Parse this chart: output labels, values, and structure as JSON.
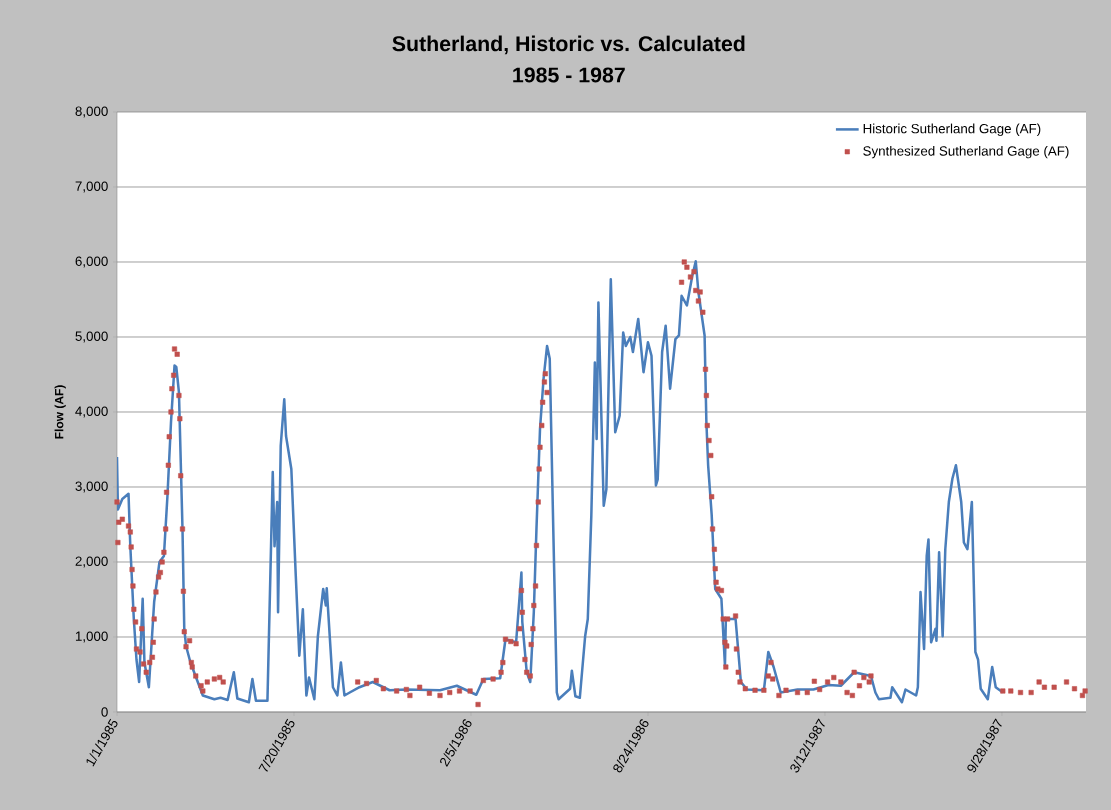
{
  "chart_data": {
    "type": "line",
    "title": "Sutherland, Historic vs. Calculated",
    "subtitle": "1985 - 1987",
    "ylabel": "Flow (AF)",
    "xlim": [
      "1985-01-01",
      "1988-01-01"
    ],
    "xticks": [
      {
        "value": "1985-01-01",
        "label": "1/1/1985"
      },
      {
        "value": "1985-07-20",
        "label": "7/20/1985"
      },
      {
        "value": "1986-02-05",
        "label": "2/5/1986"
      },
      {
        "value": "1986-08-24",
        "label": "8/24/1986"
      },
      {
        "value": "1987-03-12",
        "label": "3/12/1987"
      },
      {
        "value": "1987-09-28",
        "label": "9/28/1987"
      }
    ],
    "ylim": [
      0,
      8000
    ],
    "yticks": [
      {
        "value": 0,
        "label": "0"
      },
      {
        "value": 1000,
        "label": "1,000"
      },
      {
        "value": 2000,
        "label": "2,000"
      },
      {
        "value": 3000,
        "label": "3,000"
      },
      {
        "value": 4000,
        "label": "4,000"
      },
      {
        "value": 5000,
        "label": "5,000"
      },
      {
        "value": 6000,
        "label": "6,000"
      },
      {
        "value": 7000,
        "label": "7,000"
      },
      {
        "value": 8000,
        "label": "8,000"
      }
    ],
    "grid": "y",
    "legend": "top right",
    "series": [
      {
        "name": "Historic Sutherland Gage (AF)",
        "color": "#4a7ebb",
        "marker": "none",
        "x": [
          "1985-01-01",
          "1985-01-02",
          "1985-01-07",
          "1985-01-14",
          "1985-01-16",
          "1985-01-20",
          "1985-01-23",
          "1985-01-26",
          "1985-01-30",
          "1985-02-01",
          "1985-02-06",
          "1985-02-12",
          "1985-02-18",
          "1985-02-23",
          "1985-02-27",
          "1985-03-03",
          "1985-03-07",
          "1985-03-09",
          "1985-03-12",
          "1985-03-16",
          "1985-03-18",
          "1985-03-20",
          "1985-03-25",
          "1985-04-08",
          "1985-04-21",
          "1985-04-28",
          "1985-05-06",
          "1985-05-13",
          "1985-05-17",
          "1985-05-30",
          "1985-06-03",
          "1985-06-07",
          "1985-06-20",
          "1985-06-26",
          "1985-06-28",
          "1985-07-01",
          "1985-07-02",
          "1985-07-05",
          "1985-07-09",
          "1985-07-11",
          "1985-07-17",
          "1985-07-22",
          "1985-07-26",
          "1985-07-30",
          "1985-08-03",
          "1985-08-06",
          "1985-08-12",
          "1985-08-16",
          "1985-08-22",
          "1985-08-25",
          "1985-08-26",
          "1985-09-02",
          "1985-09-07",
          "1985-09-11",
          "1985-09-15",
          "1985-09-21",
          "1985-10-02",
          "1985-10-17",
          "1985-11-05",
          "1985-11-24",
          "1986-01-01",
          "1986-01-20",
          "1986-02-11",
          "1986-02-19",
          "1986-03-10",
          "1986-03-16",
          "1986-03-28",
          "1986-04-03",
          "1986-04-04",
          "1986-04-09",
          "1986-04-13",
          "1986-04-17",
          "1986-04-20",
          "1986-04-24",
          "1986-04-28",
          "1986-05-02",
          "1986-05-05",
          "1986-05-09",
          "1986-05-13",
          "1986-05-15",
          "1986-05-28",
          "1986-05-30",
          "1986-06-03",
          "1986-06-08",
          "1986-06-14",
          "1986-06-17",
          "1986-06-21",
          "1986-06-25",
          "1986-06-27",
          "1986-06-29",
          "1986-07-05",
          "1986-07-08",
          "1986-07-13",
          "1986-07-18",
          "1986-07-23",
          "1986-07-27",
          "1986-07-30",
          "1986-08-04",
          "1986-08-07",
          "1986-08-13",
          "1986-08-19",
          "1986-08-24",
          "1986-08-28",
          "1986-09-02",
          "1986-09-04",
          "1986-09-09",
          "1986-09-13",
          "1986-09-18",
          "1986-09-24",
          "1986-09-28",
          "1986-10-01",
          "1986-10-07",
          "1986-10-13",
          "1986-10-17",
          "1986-10-20",
          "1986-10-27",
          "1986-10-29",
          "1986-10-31",
          "1986-11-04",
          "1986-11-08",
          "1986-11-15",
          "1986-11-19",
          "1986-11-20",
          "1986-12-01",
          "1986-12-07",
          "1986-12-14",
          "1987-01-02",
          "1987-01-07",
          "1987-01-13",
          "1987-01-21",
          "1987-02-09",
          "1987-02-27",
          "1987-03-16",
          "1987-03-30",
          "1987-04-14",
          "1987-05-03",
          "1987-05-08",
          "1987-05-12",
          "1987-05-25",
          "1987-05-27",
          "1987-06-07",
          "1987-06-11",
          "1987-06-23",
          "1987-06-25",
          "1987-06-28",
          "1987-07-02",
          "1987-07-05",
          "1987-07-07",
          "1987-07-10",
          "1987-07-15",
          "1987-07-16",
          "1987-07-19",
          "1987-07-23",
          "1987-07-26",
          "1987-07-30",
          "1987-08-03",
          "1987-08-07",
          "1987-08-13",
          "1987-08-16",
          "1987-08-20",
          "1987-08-25",
          "1987-08-29",
          "1987-09-01",
          "1987-09-04",
          "1987-09-12",
          "1987-09-17",
          "1987-09-21",
          "1987-09-29"
        ],
        "values": [
          3400,
          2700,
          2840,
          2910,
          2220,
          1240,
          700,
          400,
          1510,
          660,
          330,
          1470,
          2000,
          2080,
          2880,
          3860,
          4620,
          4600,
          4260,
          2440,
          1110,
          880,
          660,
          220,
          170,
          190,
          160,
          530,
          180,
          130,
          440,
          150,
          150,
          3200,
          2210,
          2800,
          1330,
          3550,
          4170,
          3680,
          3240,
          1820,
          750,
          1370,
          220,
          460,
          170,
          1010,
          1640,
          1420,
          1650,
          330,
          220,
          660,
          220,
          260,
          330,
          400,
          290,
          300,
          290,
          350,
          230,
          440,
          450,
          970,
          930,
          1860,
          1200,
          530,
          400,
          1330,
          2440,
          3770,
          4440,
          4880,
          4710,
          2440,
          260,
          170,
          310,
          550,
          210,
          190,
          1010,
          1240,
          2620,
          4660,
          3640,
          5460,
          2750,
          2970,
          5770,
          3730,
          3950,
          5060,
          4880,
          5000,
          4800,
          5240,
          4530,
          4930,
          4750,
          3020,
          3100,
          4800,
          5150,
          4310,
          4970,
          5020,
          5550,
          5420,
          5810,
          6010,
          5600,
          5020,
          3870,
          3290,
          2630,
          1640,
          1510,
          620,
          1240,
          1240,
          400,
          300,
          290,
          800,
          600,
          260,
          300,
          300,
          360,
          350,
          530,
          480,
          260,
          170,
          190,
          330,
          130,
          300,
          220,
          330,
          1600,
          840,
          2080,
          2300,
          930,
          1110,
          950,
          2130,
          1010,
          2170,
          2800,
          3110,
          3290,
          2800,
          2260,
          2170,
          2800,
          800,
          700,
          310,
          170,
          600,
          330,
          260
        ]
      },
      {
        "name": "Synthesized Sutherland Gage (AF)",
        "type": "scatter",
        "color": "#c0504d",
        "marker": "square",
        "x": [
          "1985-01-01",
          "1985-01-02",
          "1985-01-03",
          "1985-01-07",
          "1985-01-14",
          "1985-01-16",
          "1985-01-17",
          "1985-01-18",
          "1985-01-19",
          "1985-01-20",
          "1985-01-22",
          "1985-01-23",
          "1985-01-27",
          "1985-01-29",
          "1985-01-31",
          "1985-02-03",
          "1985-02-07",
          "1985-02-10",
          "1985-02-11",
          "1985-02-12",
          "1985-02-14",
          "1985-02-17",
          "1985-02-19",
          "1985-02-21",
          "1985-02-23",
          "1985-02-25",
          "1985-02-26",
          "1985-02-28",
          "1985-03-01",
          "1985-03-03",
          "1985-03-04",
          "1985-03-06",
          "1985-03-07",
          "1985-03-10",
          "1985-03-12",
          "1985-03-13",
          "1985-03-14",
          "1985-03-16",
          "1985-03-17",
          "1985-03-18",
          "1985-03-20",
          "1985-03-24",
          "1985-03-26",
          "1985-03-27",
          "1985-03-31",
          "1985-04-06",
          "1985-04-08",
          "1985-04-13",
          "1985-04-21",
          "1985-04-27",
          "1985-05-01",
          "1985-09-30",
          "1985-10-10",
          "1985-10-21",
          "1985-10-29",
          "1985-11-13",
          "1985-11-24",
          "1985-11-28",
          "1985-12-09",
          "1985-12-20",
          "1986-01-01",
          "1986-01-12",
          "1986-01-23",
          "1986-02-04",
          "1986-02-13",
          "1986-02-19",
          "1986-03-02",
          "1986-03-11",
          "1986-03-13",
          "1986-03-16",
          "1986-03-22",
          "1986-03-28",
          "1986-04-01",
          "1986-04-03",
          "1986-04-04",
          "1986-04-07",
          "1986-04-09",
          "1986-04-13",
          "1986-04-14",
          "1986-04-16",
          "1986-04-17",
          "1986-04-19",
          "1986-04-20",
          "1986-04-22",
          "1986-04-23",
          "1986-04-24",
          "1986-04-26",
          "1986-04-27",
          "1986-04-29",
          "1986-04-30",
          "1986-05-02",
          "1986-10-01",
          "1986-10-04",
          "1986-10-07",
          "1986-10-11",
          "1986-10-15",
          "1986-10-17",
          "1986-10-20",
          "1986-10-22",
          "1986-10-25",
          "1986-10-28",
          "1986-10-29",
          "1986-10-30",
          "1986-11-01",
          "1986-11-03",
          "1986-11-04",
          "1986-11-05",
          "1986-11-07",
          "1986-11-08",
          "1986-11-09",
          "1986-11-11",
          "1986-11-15",
          "1986-11-17",
          "1986-11-19",
          "1986-11-20",
          "1986-11-21",
          "1986-11-22",
          "1986-12-01",
          "1986-12-02",
          "1986-12-04",
          "1986-12-06",
          "1986-12-12",
          "1986-12-23",
          "1987-01-02",
          "1987-01-07",
          "1987-01-10",
          "1987-01-12",
          "1987-01-19",
          "1987-01-27",
          "1987-02-09",
          "1987-02-20",
          "1987-02-28",
          "1987-03-06",
          "1987-03-15",
          "1987-03-22",
          "1987-03-30",
          "1987-04-06",
          "1987-04-12",
          "1987-04-14",
          "1987-04-20",
          "1987-04-25",
          "1987-05-01",
          "1987-05-03",
          "1987-09-29",
          "1987-10-08",
          "1987-10-19",
          "1987-10-31",
          "1987-11-09",
          "1987-11-15",
          "1987-11-26",
          "1987-12-10",
          "1987-12-19",
          "1987-12-28",
          "1987-12-31"
        ],
        "values": [
          2800,
          2260,
          2530,
          2570,
          2480,
          2400,
          2200,
          1900,
          1680,
          1370,
          1200,
          840,
          800,
          1110,
          640,
          530,
          660,
          730,
          930,
          1240,
          1600,
          1800,
          1860,
          2000,
          2130,
          2440,
          2930,
          3290,
          3670,
          4000,
          4310,
          4490,
          4840,
          4770,
          4220,
          3910,
          3150,
          2440,
          1610,
          1070,
          870,
          950,
          660,
          600,
          480,
          350,
          280,
          400,
          440,
          460,
          400,
          400,
          380,
          420,
          310,
          280,
          300,
          220,
          330,
          250,
          220,
          260,
          280,
          280,
          100,
          420,
          440,
          530,
          660,
          970,
          940,
          910,
          1110,
          1620,
          1330,
          700,
          530,
          480,
          900,
          1110,
          1420,
          1680,
          2220,
          2800,
          3240,
          3530,
          3820,
          4130,
          4400,
          4510,
          4260,
          5730,
          6000,
          5930,
          5800,
          5870,
          5620,
          5480,
          5600,
          5330,
          4570,
          4220,
          3820,
          3620,
          3420,
          2870,
          2440,
          2170,
          1910,
          1730,
          1640,
          1620,
          1240,
          930,
          600,
          880,
          1240,
          1280,
          840,
          530,
          400,
          310,
          290,
          290,
          480,
          660,
          440,
          220,
          290,
          260,
          260,
          410,
          300,
          400,
          460,
          400,
          260,
          220,
          530,
          350,
          460,
          400,
          480,
          280,
          280,
          260,
          260,
          400,
          330,
          330,
          400,
          310,
          220,
          280
        ]
      }
    ]
  }
}
